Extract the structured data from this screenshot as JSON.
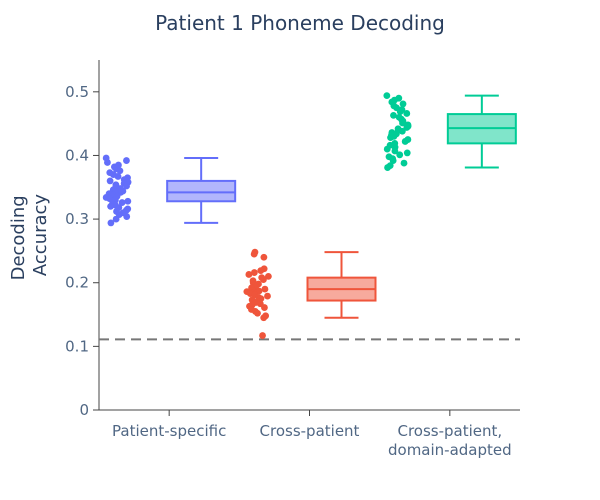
{
  "chart_data": {
    "type": "box",
    "title": "Patient 1 Phoneme Decoding",
    "ylabel_lines": [
      "Decoding",
      "Accuracy"
    ],
    "xlabel": "",
    "ylim": [
      0,
      0.55
    ],
    "yticks": [
      0,
      0.1,
      0.2,
      0.3,
      0.4,
      0.5
    ],
    "ytick_labels": [
      "0",
      "0.1",
      "0.2",
      "0.3",
      "0.4",
      "0.5"
    ],
    "chance_level": 0.111,
    "grid": false,
    "legend": "none",
    "categories": [
      {
        "label_lines": [
          "Patient-specific"
        ]
      },
      {
        "label_lines": [
          "Cross-patient"
        ]
      },
      {
        "label_lines": [
          "Cross-patient,",
          "domain-adapted"
        ]
      }
    ],
    "series": [
      {
        "color": "#636efa",
        "fill": "#b1b6fc",
        "min": 0.294,
        "q1": 0.328,
        "median": 0.342,
        "q3": 0.36,
        "max": 0.396,
        "points": [
          0.396,
          0.392,
          0.389,
          0.385,
          0.382,
          0.379,
          0.376,
          0.373,
          0.37,
          0.367,
          0.365,
          0.362,
          0.36,
          0.358,
          0.356,
          0.354,
          0.352,
          0.35,
          0.348,
          0.346,
          0.344,
          0.343,
          0.342,
          0.341,
          0.34,
          0.338,
          0.336,
          0.334,
          0.332,
          0.33,
          0.328,
          0.326,
          0.324,
          0.322,
          0.32,
          0.318,
          0.316,
          0.314,
          0.312,
          0.31,
          0.307,
          0.304,
          0.3,
          0.294
        ]
      },
      {
        "color": "#ef553b",
        "fill": "#f7aa9d",
        "min": 0.145,
        "q1": 0.172,
        "median": 0.19,
        "q3": 0.208,
        "max": 0.248,
        "points": [
          0.248,
          0.245,
          0.24,
          0.222,
          0.219,
          0.216,
          0.213,
          0.21,
          0.208,
          0.205,
          0.203,
          0.2,
          0.198,
          0.196,
          0.194,
          0.192,
          0.19,
          0.189,
          0.188,
          0.187,
          0.186,
          0.185,
          0.184,
          0.183,
          0.181,
          0.179,
          0.177,
          0.175,
          0.173,
          0.171,
          0.169,
          0.167,
          0.165,
          0.163,
          0.161,
          0.158,
          0.155,
          0.152,
          0.148,
          0.145,
          0.117
        ]
      },
      {
        "color": "#00cc96",
        "fill": "#80e5ca",
        "min": 0.381,
        "q1": 0.419,
        "median": 0.443,
        "q3": 0.465,
        "max": 0.494,
        "points": [
          0.494,
          0.49,
          0.487,
          0.484,
          0.481,
          0.478,
          0.475,
          0.472,
          0.469,
          0.466,
          0.463,
          0.46,
          0.457,
          0.454,
          0.451,
          0.448,
          0.446,
          0.444,
          0.442,
          0.44,
          0.438,
          0.436,
          0.434,
          0.432,
          0.43,
          0.428,
          0.425,
          0.422,
          0.419,
          0.416,
          0.413,
          0.41,
          0.407,
          0.404,
          0.401,
          0.398,
          0.395,
          0.392,
          0.388,
          0.384,
          0.381
        ]
      }
    ]
  }
}
